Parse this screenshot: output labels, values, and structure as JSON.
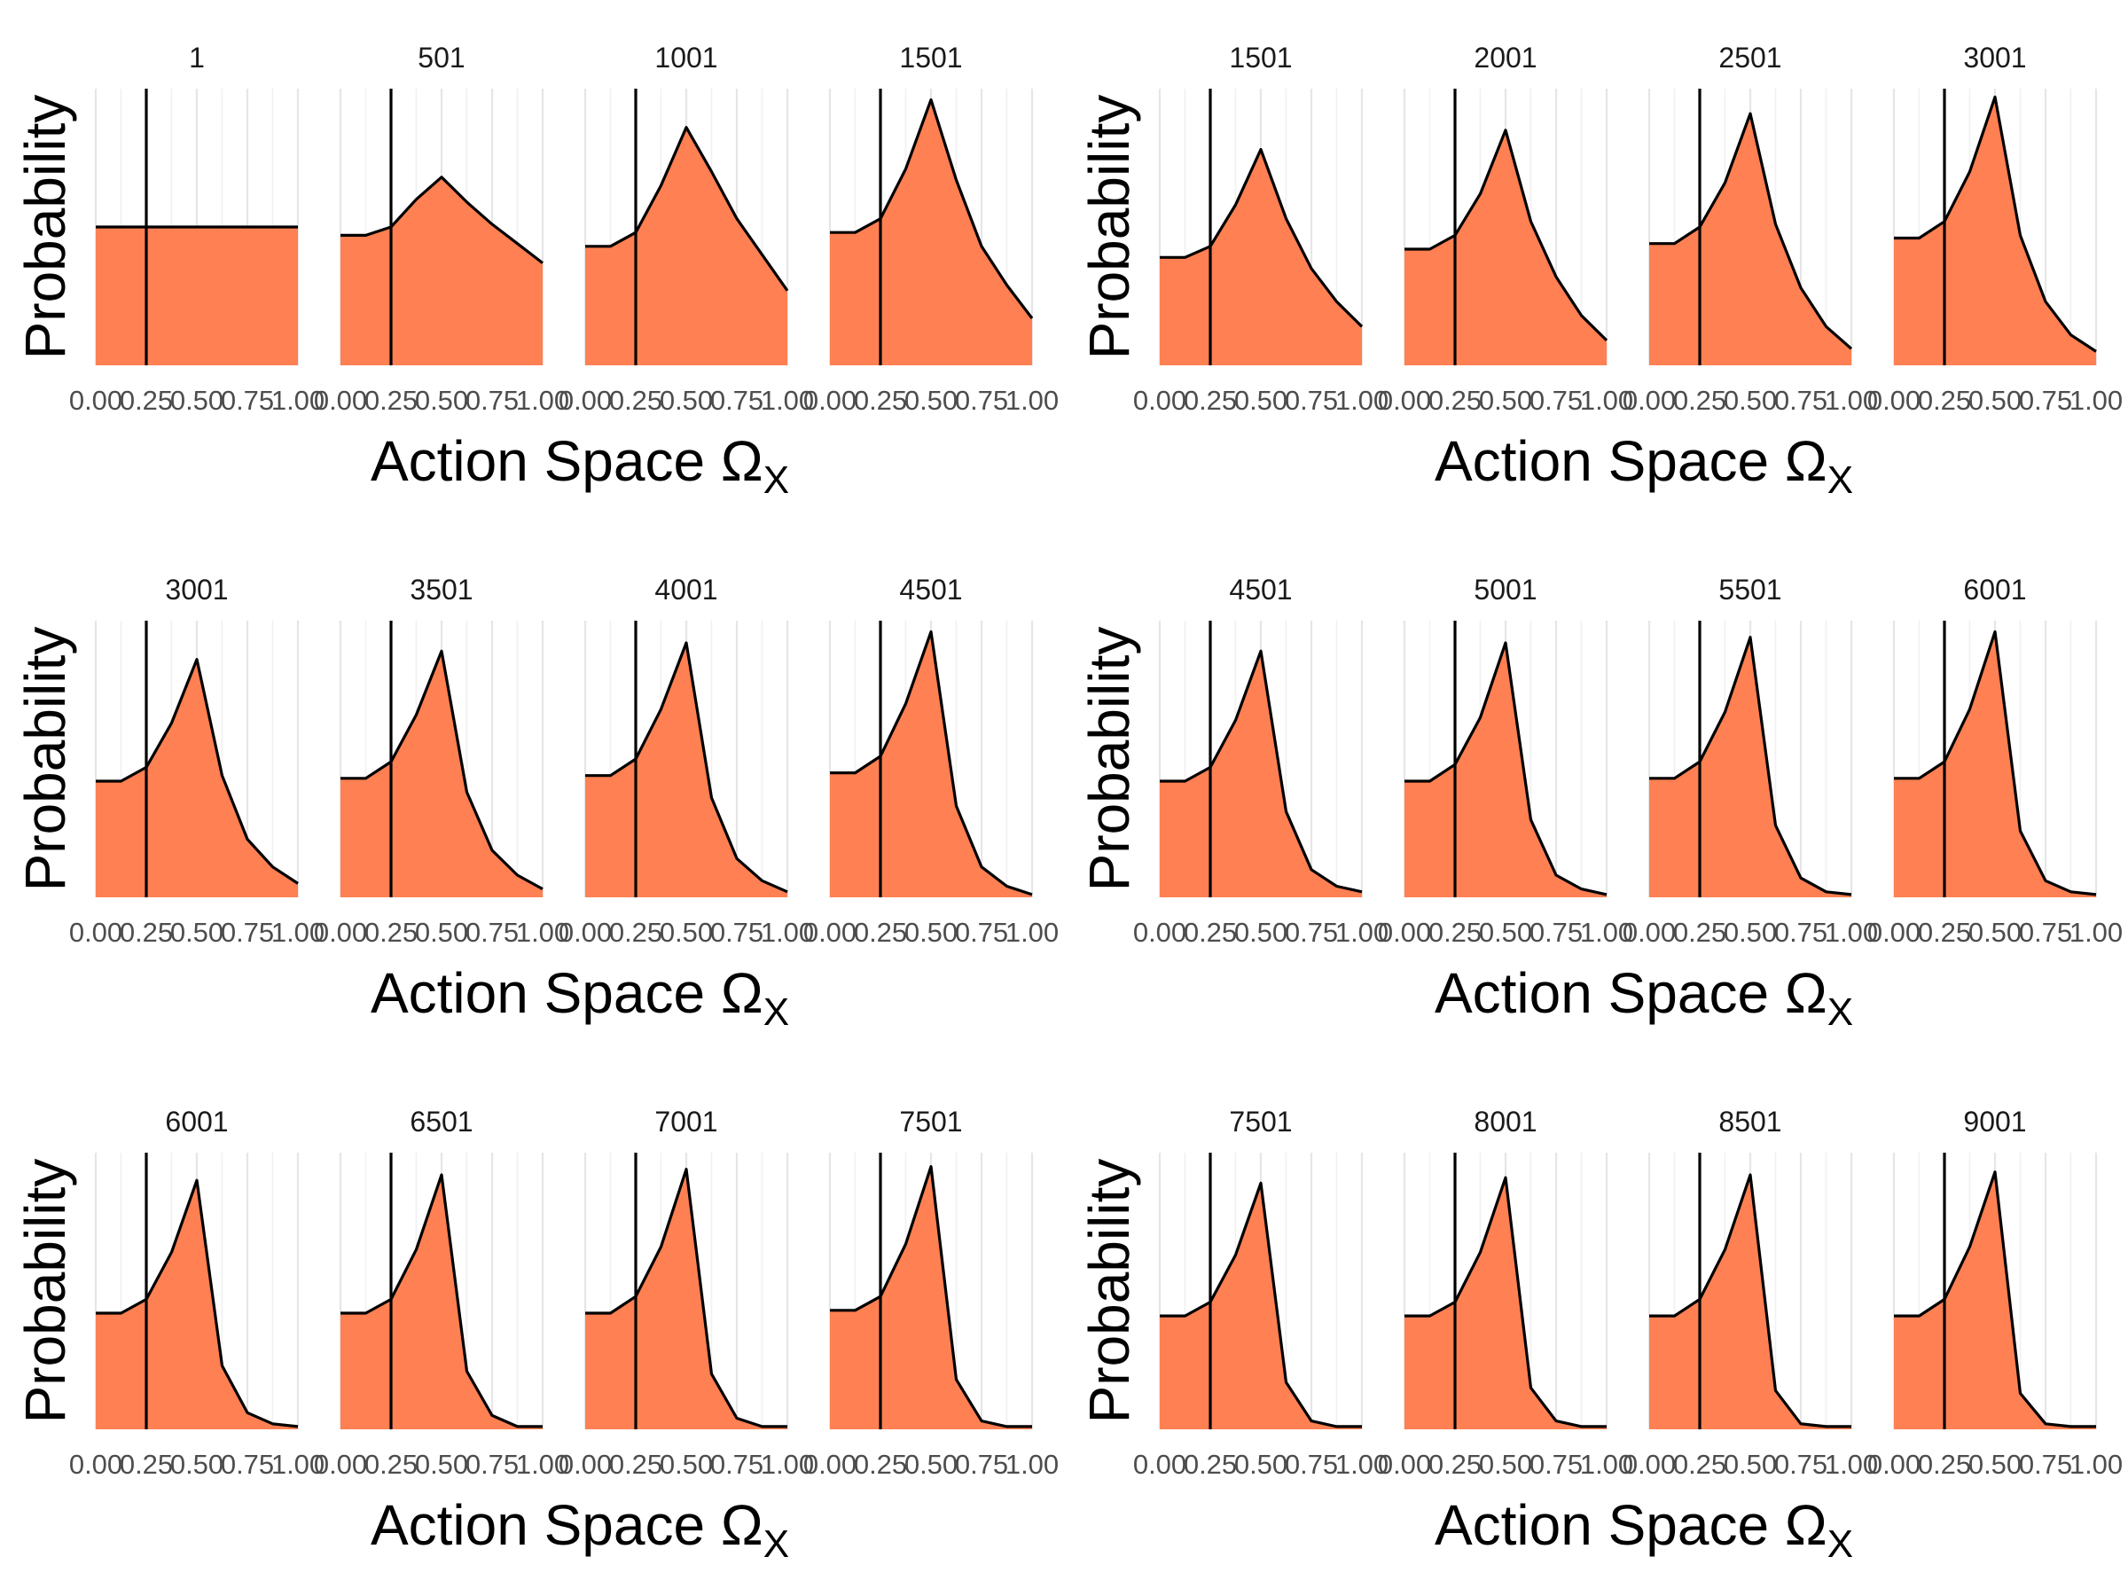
{
  "chart_data": {
    "type": "area",
    "x": [
      0.0,
      0.125,
      0.25,
      0.375,
      0.5,
      0.625,
      0.75,
      0.875,
      1.0
    ],
    "x_ticks": [
      "0.00",
      "0.25",
      "0.50",
      "0.75",
      "1.00"
    ],
    "xlim": [
      0,
      1
    ],
    "ylabel": "Probability",
    "xlabel_main": "Action Space Ω",
    "xlabel_sub": "X",
    "vertical_line_x": 0.25,
    "y_axis_ticks_shown": false,
    "grid": "vertical minor and major x gridlines",
    "fill_color": "#FF8052",
    "line_color": "#000000",
    "groups": [
      {
        "facets": [
          {
            "label": "1",
            "values": [
              0.1,
              0.1,
              0.1,
              0.1,
              0.1,
              0.1,
              0.1,
              0.1,
              0.1
            ]
          },
          {
            "label": "501",
            "values": [
              0.094,
              0.094,
              0.1,
              0.12,
              0.136,
              0.118,
              0.102,
              0.088,
              0.074
            ]
          },
          {
            "label": "1001",
            "values": [
              0.086,
              0.086,
              0.096,
              0.13,
              0.172,
              0.14,
              0.106,
              0.08,
              0.054
            ]
          },
          {
            "label": "1501",
            "values": [
              0.096,
              0.096,
              0.106,
              0.142,
              0.192,
              0.134,
              0.086,
              0.058,
              0.034
            ]
          }
        ]
      },
      {
        "facets": [
          {
            "label": "1501",
            "values": [
              0.078,
              0.078,
              0.086,
              0.116,
              0.156,
              0.106,
              0.07,
              0.046,
              0.028
            ]
          },
          {
            "label": "2001",
            "values": [
              0.084,
              0.084,
              0.094,
              0.124,
              0.17,
              0.104,
              0.064,
              0.036,
              0.018
            ]
          },
          {
            "label": "2501",
            "values": [
              0.088,
              0.088,
              0.1,
              0.132,
              0.182,
              0.102,
              0.056,
              0.028,
              0.012
            ]
          },
          {
            "label": "3001",
            "values": [
              0.092,
              0.092,
              0.104,
              0.14,
              0.194,
              0.094,
              0.046,
              0.022,
              0.01
            ]
          }
        ]
      },
      {
        "facets": [
          {
            "label": "3001",
            "values": [
              0.084,
              0.084,
              0.094,
              0.126,
              0.172,
              0.088,
              0.042,
              0.022,
              0.01
            ]
          },
          {
            "label": "3501",
            "values": [
              0.086,
              0.086,
              0.098,
              0.132,
              0.178,
              0.076,
              0.034,
              0.016,
              0.006
            ]
          },
          {
            "label": "4001",
            "values": [
              0.088,
              0.088,
              0.1,
              0.136,
              0.184,
              0.072,
              0.028,
              0.012,
              0.004
            ]
          },
          {
            "label": "4501",
            "values": [
              0.09,
              0.09,
              0.102,
              0.14,
              0.192,
              0.066,
              0.022,
              0.008,
              0.002
            ]
          }
        ]
      },
      {
        "facets": [
          {
            "label": "4501",
            "values": [
              0.084,
              0.084,
              0.094,
              0.128,
              0.178,
              0.062,
              0.02,
              0.008,
              0.004
            ]
          },
          {
            "label": "5001",
            "values": [
              0.084,
              0.084,
              0.096,
              0.13,
              0.184,
              0.056,
              0.016,
              0.006,
              0.002
            ]
          },
          {
            "label": "5501",
            "values": [
              0.086,
              0.086,
              0.098,
              0.134,
              0.188,
              0.052,
              0.014,
              0.004,
              0.002
            ]
          },
          {
            "label": "6001",
            "values": [
              0.086,
              0.086,
              0.098,
              0.136,
              0.192,
              0.048,
              0.012,
              0.004,
              0.002
            ]
          }
        ]
      },
      {
        "facets": [
          {
            "label": "6001",
            "values": [
              0.084,
              0.084,
              0.094,
              0.128,
              0.18,
              0.046,
              0.012,
              0.004,
              0.002
            ]
          },
          {
            "label": "6501",
            "values": [
              0.084,
              0.084,
              0.094,
              0.13,
              0.184,
              0.042,
              0.01,
              0.002,
              0.002
            ]
          },
          {
            "label": "7001",
            "values": [
              0.084,
              0.084,
              0.096,
              0.132,
              0.188,
              0.04,
              0.008,
              0.002,
              0.002
            ]
          },
          {
            "label": "7501",
            "values": [
              0.086,
              0.086,
              0.096,
              0.134,
              0.19,
              0.036,
              0.006,
              0.002,
              0.002
            ]
          }
        ]
      },
      {
        "facets": [
          {
            "label": "7501",
            "values": [
              0.082,
              0.082,
              0.092,
              0.126,
              0.178,
              0.034,
              0.006,
              0.002,
              0.002
            ]
          },
          {
            "label": "8001",
            "values": [
              0.082,
              0.082,
              0.092,
              0.128,
              0.182,
              0.03,
              0.006,
              0.002,
              0.002
            ]
          },
          {
            "label": "8501",
            "values": [
              0.082,
              0.082,
              0.094,
              0.13,
              0.184,
              0.028,
              0.004,
              0.002,
              0.002
            ]
          },
          {
            "label": "9001",
            "values": [
              0.082,
              0.082,
              0.094,
              0.132,
              0.186,
              0.026,
              0.004,
              0.002,
              0.002
            ]
          }
        ]
      }
    ]
  }
}
